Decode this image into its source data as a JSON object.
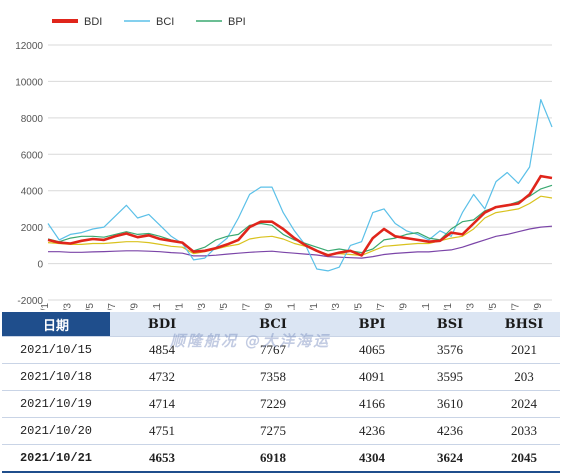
{
  "colors": {
    "BDI": "#e0251b",
    "BCI": "#5bc0e8",
    "BPI": "#3aa870",
    "BSI": "#d9c21e",
    "BHSI": "#7b45a8",
    "grid": "#d9d9d9",
    "header_dark": "#1f4e8c",
    "header_light": "#dbe5f3"
  },
  "chart_data": {
    "type": "line",
    "title": "",
    "xlabel": "",
    "ylabel": "",
    "ylim": [
      -2000,
      12000
    ],
    "yticks": [
      "-2000",
      "0",
      "2000",
      "4000",
      "6000",
      "8000",
      "10000",
      "12000"
    ],
    "grid": true,
    "legend_position": "top-left",
    "x_range": [
      "2018-01",
      "2021-10"
    ],
    "xticks": [
      "18/1",
      "18/3",
      "18/5",
      "18/7",
      "18/9",
      "18/11",
      "19/1",
      "19/3",
      "19/5",
      "19/7",
      "19/9",
      "19/11",
      "20/1",
      "20/3",
      "20/5",
      "20/7",
      "20/9",
      "20/11",
      "21/1",
      "21/3",
      "21/5",
      "21/7",
      "21/9"
    ],
    "x": [
      "18/1",
      "18/2",
      "18/3",
      "18/4",
      "18/5",
      "18/6",
      "18/7",
      "18/8",
      "18/9",
      "18/10",
      "18/11",
      "18/12",
      "19/1",
      "19/2",
      "19/3",
      "19/4",
      "19/5",
      "19/6",
      "19/7",
      "19/8",
      "19/9",
      "19/10",
      "19/11",
      "19/12",
      "20/1",
      "20/2",
      "20/3",
      "20/4",
      "20/5",
      "20/6",
      "20/7",
      "20/8",
      "20/9",
      "20/10",
      "20/11",
      "20/12",
      "21/1",
      "21/2",
      "21/3",
      "21/4",
      "21/5",
      "21/6",
      "21/7",
      "21/8",
      "21/9",
      "21/10"
    ],
    "series": [
      {
        "name": "BDI",
        "values": [
          1300,
          1150,
          1100,
          1250,
          1350,
          1300,
          1500,
          1650,
          1450,
          1550,
          1350,
          1250,
          1150,
          650,
          700,
          850,
          1050,
          1300,
          2000,
          2300,
          2300,
          1900,
          1400,
          1000,
          700,
          450,
          600,
          700,
          450,
          1400,
          1900,
          1500,
          1400,
          1300,
          1200,
          1250,
          1700,
          1600,
          2200,
          2800,
          3100,
          3200,
          3300,
          3800,
          4800,
          4700
        ]
      },
      {
        "name": "BCI",
        "values": [
          2200,
          1300,
          1600,
          1700,
          1900,
          2000,
          2600,
          3200,
          2500,
          2700,
          2100,
          1500,
          1100,
          200,
          300,
          900,
          1400,
          2500,
          3800,
          4200,
          4200,
          2800,
          1800,
          1000,
          -300,
          -400,
          -200,
          1000,
          1200,
          2800,
          3000,
          2200,
          1800,
          1600,
          1300,
          1800,
          1500,
          2800,
          3800,
          3000,
          4500,
          5000,
          4400,
          5300,
          9000,
          7500
        ]
      },
      {
        "name": "BPI",
        "values": [
          1350,
          1200,
          1400,
          1500,
          1500,
          1450,
          1600,
          1750,
          1600,
          1650,
          1500,
          1300,
          1150,
          700,
          900,
          1300,
          1500,
          1600,
          2100,
          2200,
          2100,
          1600,
          1300,
          1100,
          900,
          700,
          800,
          700,
          600,
          800,
          1300,
          1400,
          1600,
          1700,
          1400,
          1300,
          1900,
          2300,
          2400,
          2900,
          3100,
          3200,
          3400,
          3700,
          4100,
          4300
        ]
      },
      {
        "name": "BSI",
        "values": [
          1150,
          1100,
          1050,
          1050,
          1100,
          1100,
          1150,
          1200,
          1200,
          1150,
          1050,
          950,
          900,
          550,
          650,
          800,
          950,
          1050,
          1350,
          1450,
          1500,
          1350,
          1100,
          950,
          700,
          500,
          550,
          500,
          450,
          700,
          950,
          1000,
          1050,
          1100,
          1100,
          1250,
          1400,
          1500,
          1900,
          2500,
          2800,
          2900,
          3000,
          3300,
          3700,
          3600
        ]
      },
      {
        "name": "BHSI",
        "values": [
          650,
          650,
          620,
          620,
          640,
          660,
          680,
          700,
          700,
          680,
          650,
          600,
          570,
          420,
          420,
          460,
          520,
          570,
          620,
          650,
          680,
          620,
          570,
          520,
          470,
          380,
          350,
          320,
          300,
          380,
          500,
          560,
          600,
          640,
          640,
          700,
          750,
          900,
          1100,
          1300,
          1500,
          1600,
          1750,
          1900,
          2000,
          2050
        ]
      }
    ]
  },
  "legend": [
    {
      "name": "BDI",
      "label": "BDI"
    },
    {
      "name": "BCI",
      "label": "BCI"
    },
    {
      "name": "BPI",
      "label": "BPI"
    }
  ],
  "table": {
    "headers": [
      "日期",
      "BDI",
      "BCI",
      "BPI",
      "BSI",
      "BHSI"
    ],
    "rows": [
      {
        "date": "2021/10/15",
        "BDI": "4854",
        "BCI": "7767",
        "BPI": "4065",
        "BSI": "3576",
        "BHSI": "2021"
      },
      {
        "date": "2021/10/18",
        "BDI": "4732",
        "BCI": "7358",
        "BPI": "4091",
        "BSI": "3595",
        "BHSI": "203"
      },
      {
        "date": "2021/10/19",
        "BDI": "4714",
        "BCI": "7229",
        "BPI": "4166",
        "BSI": "3610",
        "BHSI": "2024"
      },
      {
        "date": "2021/10/20",
        "BDI": "4751",
        "BCI": "7275",
        "BPI": "4236",
        "BSI": "4236",
        "BHSI": "2033"
      },
      {
        "date": "2021/10/21",
        "BDI": "4653",
        "BCI": "6918",
        "BPI": "4304",
        "BSI": "3624",
        "BHSI": "2045"
      }
    ]
  },
  "watermark": "顺隆船况 @大洋海运"
}
